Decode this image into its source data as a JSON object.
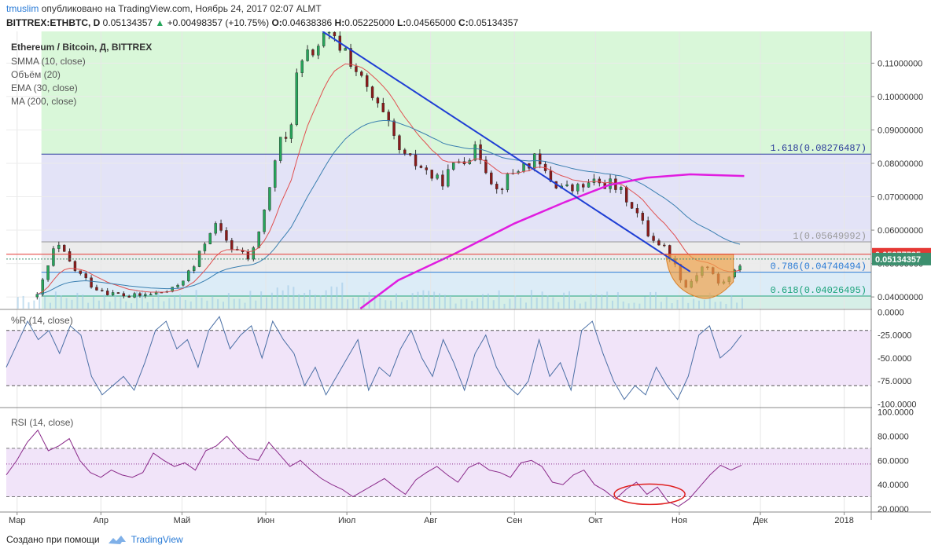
{
  "header": {
    "user": "tmuslim",
    "published": "опубликовано на TradingView.com, Ноябрь 24, 2017 02:07 ALMT",
    "symbol": "BITTREX:ETHBTC, D",
    "close": "0.05134357",
    "change": "+0.00498357 (+10.75%)",
    "o_label": "O:",
    "o_value": "0.04638386",
    "h_label": "H:",
    "h_value": "0.05225000",
    "l_label": "L:",
    "l_value": "0.04565000",
    "c_label": "C:",
    "c_value": "0.05134357"
  },
  "footer": {
    "created": "Создано при помощи",
    "brand": "TradingView"
  },
  "colors": {
    "up": "#26a65b",
    "down": "#8b1a1a",
    "trendline": "#1f3fd4",
    "ma200": "#e01de0",
    "ema": "#3a7fb0",
    "smma": "#e05050",
    "price_red": "#e53935",
    "price_green": "#3c8f6e"
  },
  "chart_data": [
    {
      "type": "candlestick",
      "title": "Ethereum / Bitcoin, Д, BITTREX",
      "indicators": [
        "SMMA (10, close)",
        "Объём (20)",
        "EMA (30, close)",
        "MA (200, close)"
      ],
      "x_ticks": [
        "Мар",
        "Апр",
        "Май",
        "Июн",
        "Июл",
        "Авг",
        "Сен",
        "Окт",
        "Ноя",
        "Дек",
        "2018"
      ],
      "y_ticks": [
        0.04,
        0.05,
        0.06,
        0.07,
        0.08,
        0.09,
        0.1,
        0.11
      ],
      "y_tick_labels": [
        "0.04000000",
        "0.05000000",
        "0.06000000",
        "0.07000000",
        "0.08000000",
        "0.09000000",
        "0.10000000",
        "0.11000000"
      ],
      "ylim": [
        0.0365,
        0.1195
      ],
      "fib_levels": [
        {
          "label": "1.618(0.08276487)",
          "value": 0.08276487
        },
        {
          "label": "1(0.05649992)",
          "value": 0.05649992
        },
        {
          "label": "0.786(0.04740494)",
          "value": 0.04740494
        },
        {
          "label": "0.618(0.04026495)",
          "value": 0.04026495
        }
      ],
      "price_labels": [
        {
          "label": "0.05277735",
          "value": 0.05277735,
          "color": "red"
        },
        {
          "label": "0.05134357",
          "value": 0.05134357,
          "color": "green"
        }
      ],
      "trendline": [
        {
          "date": "2017-06-22",
          "value": 0.1195
        },
        {
          "date": "2017-11-05",
          "value": 0.0476
        }
      ],
      "ma200": [
        {
          "date": "2017-07-06",
          "value": 0.0365
        },
        {
          "date": "2017-07-20",
          "value": 0.045
        },
        {
          "date": "2017-08-10",
          "value": 0.053
        },
        {
          "date": "2017-09-01",
          "value": 0.062
        },
        {
          "date": "2017-09-20",
          "value": 0.0685
        },
        {
          "date": "2017-10-06",
          "value": 0.0735
        },
        {
          "date": "2017-10-20",
          "value": 0.0757
        },
        {
          "date": "2017-11-05",
          "value": 0.0767
        },
        {
          "date": "2017-11-25",
          "value": 0.0762
        }
      ],
      "cup_pattern": {
        "start": "2017-10-27",
        "end": "2017-11-21",
        "top": 0.0528,
        "bottom": 0.0398
      },
      "candles_approx": [
        {
          "date": "2017-03-08",
          "close": 0.04
        },
        {
          "date": "2017-03-15",
          "close": 0.056
        },
        {
          "date": "2017-03-22",
          "close": 0.048
        },
        {
          "date": "2017-03-29",
          "close": 0.043
        },
        {
          "date": "2017-04-05",
          "close": 0.041
        },
        {
          "date": "2017-04-12",
          "close": 0.04
        },
        {
          "date": "2017-04-20",
          "close": 0.041
        },
        {
          "date": "2017-04-27",
          "close": 0.042
        },
        {
          "date": "2017-05-05",
          "close": 0.049
        },
        {
          "date": "2017-05-12",
          "close": 0.062
        },
        {
          "date": "2017-05-19",
          "close": 0.055
        },
        {
          "date": "2017-05-26",
          "close": 0.051
        },
        {
          "date": "2017-06-02",
          "close": 0.072
        },
        {
          "date": "2017-06-05",
          "close": 0.086
        },
        {
          "date": "2017-06-09",
          "close": 0.087
        },
        {
          "date": "2017-06-12",
          "close": 0.106
        },
        {
          "date": "2017-06-16",
          "close": 0.112
        },
        {
          "date": "2017-06-23",
          "close": 0.118
        },
        {
          "date": "2017-06-30",
          "close": 0.114
        },
        {
          "date": "2017-07-07",
          "close": 0.103
        },
        {
          "date": "2017-07-14",
          "close": 0.094
        },
        {
          "date": "2017-07-21",
          "close": 0.082
        },
        {
          "date": "2017-07-28",
          "close": 0.079
        },
        {
          "date": "2017-08-04",
          "close": 0.074
        },
        {
          "date": "2017-08-11",
          "close": 0.081
        },
        {
          "date": "2017-08-18",
          "close": 0.084
        },
        {
          "date": "2017-08-25",
          "close": 0.072
        },
        {
          "date": "2017-09-01",
          "close": 0.078
        },
        {
          "date": "2017-09-08",
          "close": 0.081
        },
        {
          "date": "2017-09-15",
          "close": 0.074
        },
        {
          "date": "2017-09-22",
          "close": 0.072
        },
        {
          "date": "2017-09-29",
          "close": 0.074
        },
        {
          "date": "2017-10-06",
          "close": 0.074
        },
        {
          "date": "2017-10-13",
          "close": 0.069
        },
        {
          "date": "2017-10-20",
          "close": 0.059
        },
        {
          "date": "2017-10-27",
          "close": 0.054
        },
        {
          "date": "2017-11-03",
          "close": 0.043
        },
        {
          "date": "2017-11-10",
          "close": 0.05
        },
        {
          "date": "2017-11-15",
          "close": 0.044
        },
        {
          "date": "2017-11-20",
          "close": 0.046
        },
        {
          "date": "2017-11-24",
          "close": 0.0513
        }
      ]
    },
    {
      "type": "line",
      "title": "%R (14, close)",
      "y_ticks": [
        0,
        -25,
        -50,
        -75,
        -100
      ],
      "y_tick_labels": [
        "0.0000",
        "-25.0000",
        "-50.0000",
        "-75.0000",
        "-100.0000"
      ],
      "ylim": [
        -103,
        2
      ],
      "bands": [
        -20,
        -80
      ],
      "values": [
        -60,
        -35,
        -10,
        -30,
        -20,
        -45,
        -15,
        -25,
        -70,
        -90,
        -80,
        -70,
        -85,
        -55,
        -20,
        -10,
        -40,
        -30,
        -60,
        -20,
        -5,
        -40,
        -25,
        -15,
        -50,
        -10,
        -30,
        -45,
        -80,
        -60,
        -90,
        -70,
        -50,
        -30,
        -85,
        -60,
        -70,
        -40,
        -20,
        -50,
        -70,
        -30,
        -55,
        -85,
        -45,
        -25,
        -60,
        -80,
        -90,
        -75,
        -30,
        -70,
        -55,
        -85,
        -20,
        -10,
        -45,
        -75,
        -95,
        -80,
        -90,
        -60,
        -80,
        -95,
        -70,
        -25,
        -15,
        -50,
        -40,
        -25
      ]
    },
    {
      "type": "line",
      "title": "RSI (14, close)",
      "y_ticks": [
        100,
        80,
        60,
        40,
        20
      ],
      "y_tick_labels": [
        "100.0000",
        "80.0000",
        "60.0000",
        "40.0000",
        "20.0000"
      ],
      "ylim": [
        18,
        103
      ],
      "bands": [
        30,
        70
      ],
      "level": 57,
      "values": [
        48,
        60,
        75,
        85,
        68,
        72,
        78,
        60,
        50,
        46,
        52,
        48,
        46,
        50,
        66,
        60,
        55,
        58,
        52,
        68,
        72,
        80,
        70,
        62,
        60,
        75,
        65,
        55,
        60,
        52,
        45,
        40,
        36,
        30,
        35,
        40,
        45,
        38,
        32,
        44,
        50,
        55,
        48,
        42,
        54,
        58,
        52,
        50,
        46,
        58,
        60,
        55,
        42,
        40,
        48,
        52,
        40,
        35,
        28,
        36,
        42,
        32,
        38,
        26,
        22,
        28,
        38,
        48,
        56,
        52,
        56
      ]
    }
  ]
}
